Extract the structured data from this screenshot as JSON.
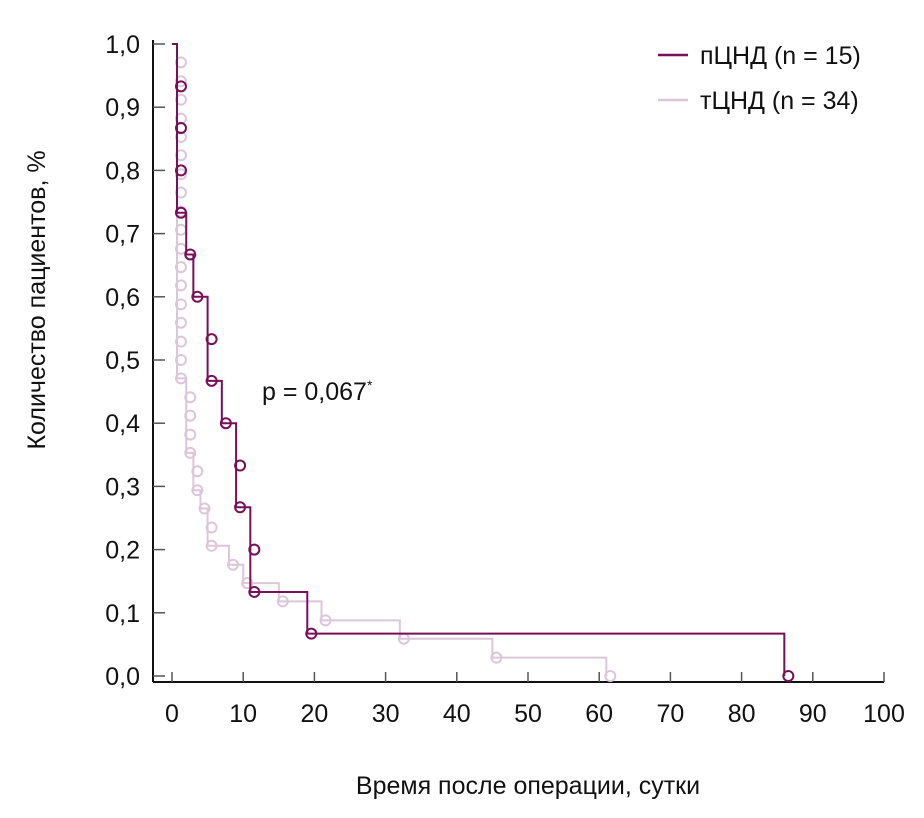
{
  "chart_data": {
    "type": "line",
    "subtype": "kaplan-meier-step",
    "xlabel": "Время после операции, сутки",
    "ylabel": "Количество пациентов, %",
    "xlim": [
      0,
      100
    ],
    "ylim": [
      0,
      1.0
    ],
    "xticks": [
      "0",
      "10",
      "20",
      "30",
      "40",
      "50",
      "60",
      "70",
      "80",
      "90",
      "100"
    ],
    "xtick_values": [
      0,
      10,
      20,
      30,
      40,
      50,
      60,
      70,
      80,
      90,
      100
    ],
    "yticks": [
      "0,0",
      "0,1",
      "0,2",
      "0,3",
      "0,4",
      "0,5",
      "0,6",
      "0,7",
      "0,8",
      "0,9",
      "1,0"
    ],
    "ytick_values": [
      0,
      0.1,
      0.2,
      0.3,
      0.4,
      0.5,
      0.6,
      0.7,
      0.8,
      0.9,
      1.0
    ],
    "annotation": {
      "text": "p = 0,067",
      "superscript": "*"
    },
    "legend_position": "top-right",
    "series": [
      {
        "name": "пЦНД (n = 15)",
        "color": "#780f59",
        "steps": [
          [
            0,
            1.0
          ],
          [
            0.7,
            0.733
          ],
          [
            2,
            0.667
          ],
          [
            3,
            0.6
          ],
          [
            5,
            0.467
          ],
          [
            7,
            0.4
          ],
          [
            9,
            0.267
          ],
          [
            11,
            0.133
          ],
          [
            19,
            0.067
          ],
          [
            86,
            0.0
          ]
        ],
        "markers": [
          [
            0.7,
            0.933
          ],
          [
            0.7,
            0.867
          ],
          [
            0.7,
            0.8
          ],
          [
            0.7,
            0.733
          ],
          [
            2,
            0.667
          ],
          [
            3,
            0.6
          ],
          [
            5,
            0.533
          ],
          [
            5,
            0.467
          ],
          [
            7,
            0.4
          ],
          [
            9,
            0.333
          ],
          [
            9,
            0.267
          ],
          [
            11,
            0.2
          ],
          [
            11,
            0.133
          ],
          [
            19,
            0.067
          ],
          [
            86,
            0.0
          ]
        ]
      },
      {
        "name": "тЦНД (n = 34)",
        "color": "#dcc6da",
        "steps": [
          [
            0,
            1.0
          ],
          [
            0.7,
            0.471
          ],
          [
            2,
            0.353
          ],
          [
            3,
            0.294
          ],
          [
            4,
            0.265
          ],
          [
            5,
            0.206
          ],
          [
            8,
            0.176
          ],
          [
            10,
            0.147
          ],
          [
            15,
            0.118
          ],
          [
            21,
            0.088
          ],
          [
            32,
            0.059
          ],
          [
            45,
            0.029
          ],
          [
            61,
            0.0
          ]
        ],
        "markers": [
          [
            0.7,
            0.971
          ],
          [
            0.7,
            0.941
          ],
          [
            0.7,
            0.912
          ],
          [
            0.7,
            0.882
          ],
          [
            0.7,
            0.853
          ],
          [
            0.7,
            0.824
          ],
          [
            0.7,
            0.794
          ],
          [
            0.7,
            0.765
          ],
          [
            0.7,
            0.735
          ],
          [
            0.7,
            0.706
          ],
          [
            0.7,
            0.676
          ],
          [
            0.7,
            0.647
          ],
          [
            0.7,
            0.618
          ],
          [
            0.7,
            0.588
          ],
          [
            0.7,
            0.559
          ],
          [
            0.7,
            0.529
          ],
          [
            0.7,
            0.5
          ],
          [
            0.7,
            0.471
          ],
          [
            2,
            0.441
          ],
          [
            2,
            0.412
          ],
          [
            2,
            0.382
          ],
          [
            2,
            0.353
          ],
          [
            3,
            0.324
          ],
          [
            3,
            0.294
          ],
          [
            4,
            0.265
          ],
          [
            5,
            0.235
          ],
          [
            5,
            0.206
          ],
          [
            8,
            0.176
          ],
          [
            10,
            0.147
          ],
          [
            15,
            0.118
          ],
          [
            21,
            0.088
          ],
          [
            32,
            0.059
          ],
          [
            45,
            0.029
          ],
          [
            61,
            0.0
          ]
        ]
      }
    ]
  }
}
